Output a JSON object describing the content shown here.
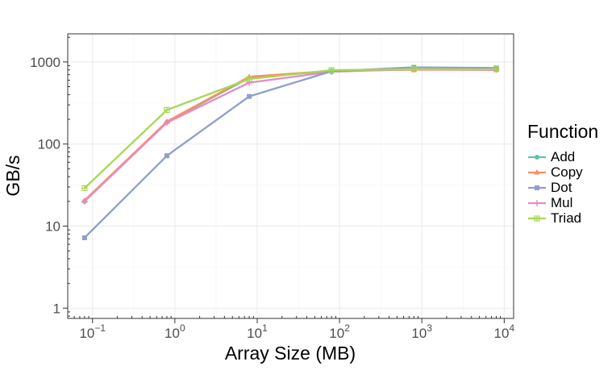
{
  "chart_data": {
    "type": "line",
    "xlabel": "Array Size (MB)",
    "ylabel": "GB/s",
    "x_scale": "log10",
    "y_scale": "log10",
    "xlim": [
      0.05,
      13000
    ],
    "ylim": [
      0.75,
      2200
    ],
    "x_ticks": [
      {
        "base": "10",
        "exp": "−1"
      },
      {
        "base": "10",
        "exp": "0"
      },
      {
        "base": "10",
        "exp": "1"
      },
      {
        "base": "10",
        "exp": "2"
      },
      {
        "base": "10",
        "exp": "3"
      },
      {
        "base": "10",
        "exp": "4"
      }
    ],
    "y_ticks": [
      "1",
      "10",
      "100",
      "1000"
    ],
    "x": [
      0.08,
      0.8,
      8,
      80,
      800,
      8000
    ],
    "legend_title": "Function",
    "legend_position": "right",
    "grid": true,
    "series": [
      {
        "name": "Add",
        "color": "#66c2a5",
        "marker": "circle",
        "values": [
          20,
          185,
          640,
          775,
          810,
          805
        ]
      },
      {
        "name": "Copy",
        "color": "#fc8d62",
        "marker": "triangle",
        "values": [
          20.5,
          188,
          660,
          780,
          805,
          800
        ]
      },
      {
        "name": "Dot",
        "color": "#8da0cb",
        "marker": "square",
        "values": [
          7.2,
          72,
          380,
          770,
          860,
          845
        ]
      },
      {
        "name": "Mul",
        "color": "#e78ac3",
        "marker": "plus",
        "values": [
          20,
          182,
          560,
          760,
          815,
          805
        ]
      },
      {
        "name": "Triad",
        "color": "#a6d854",
        "marker": "boxplus",
        "values": [
          29,
          260,
          620,
          795,
          815,
          815
        ]
      }
    ]
  }
}
